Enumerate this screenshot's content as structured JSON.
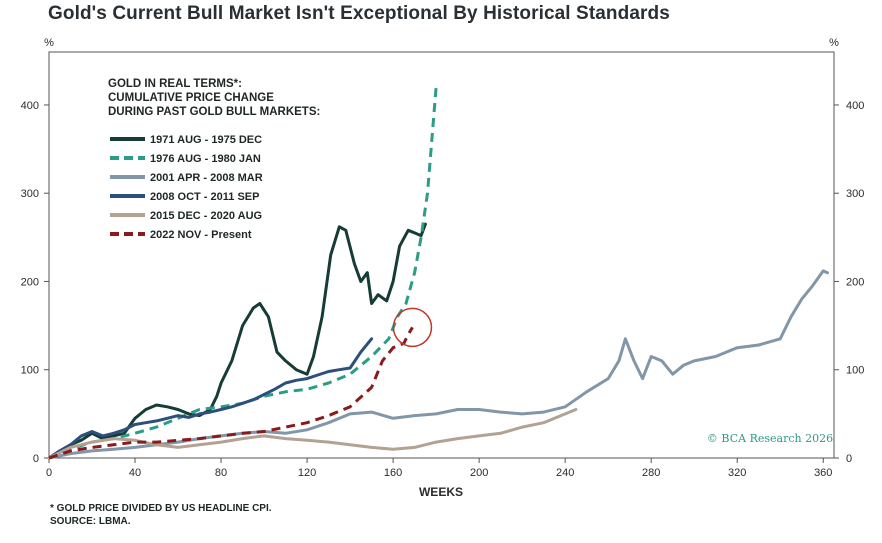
{
  "title": "Gold's Current Bull Market Isn't Exceptional By Historical Standards",
  "y_unit_left": "%",
  "y_unit_right": "%",
  "credit": "© BCA Research 2026",
  "footnote": "* GOLD PRICE DIVIDED BY US HEADLINE CPI.",
  "source": "SOURCE: LBMA.",
  "chart_data": {
    "type": "line",
    "title": "Gold's Current Bull Market Isn't Exceptional By Historical Standards",
    "xlabel": "WEEKS",
    "ylabel": "%",
    "xlim": [
      0,
      365
    ],
    "ylim": [
      0,
      460
    ],
    "x_ticks": [
      0,
      40,
      80,
      120,
      160,
      200,
      240,
      280,
      320,
      360
    ],
    "y_ticks": [
      0,
      100,
      200,
      300,
      400
    ],
    "legend_title": [
      "GOLD IN REAL TERMS*:",
      "CUMULATIVE PRICE CHANGE",
      "DURING PAST GOLD BULL MARKETS:"
    ],
    "legend_position": "top-left",
    "grid": false,
    "annotation": "red circle around latest value of current bull market",
    "series": [
      {
        "name": "1971 AUG - 1975 DEC",
        "color": "#163c36",
        "style": "solid",
        "points": [
          [
            0,
            0
          ],
          [
            5,
            8
          ],
          [
            10,
            15
          ],
          [
            15,
            20
          ],
          [
            20,
            28
          ],
          [
            25,
            22
          ],
          [
            30,
            25
          ],
          [
            35,
            28
          ],
          [
            40,
            45
          ],
          [
            45,
            55
          ],
          [
            50,
            60
          ],
          [
            55,
            58
          ],
          [
            60,
            55
          ],
          [
            65,
            50
          ],
          [
            70,
            48
          ],
          [
            75,
            55
          ],
          [
            78,
            70
          ],
          [
            80,
            85
          ],
          [
            85,
            110
          ],
          [
            90,
            150
          ],
          [
            95,
            170
          ],
          [
            98,
            175
          ],
          [
            102,
            160
          ],
          [
            106,
            120
          ],
          [
            110,
            110
          ],
          [
            115,
            100
          ],
          [
            120,
            95
          ],
          [
            123,
            115
          ],
          [
            127,
            160
          ],
          [
            131,
            230
          ],
          [
            135,
            262
          ],
          [
            138,
            258
          ],
          [
            142,
            220
          ],
          [
            145,
            200
          ],
          [
            148,
            210
          ],
          [
            150,
            175
          ],
          [
            153,
            185
          ],
          [
            157,
            178
          ],
          [
            160,
            200
          ],
          [
            163,
            240
          ],
          [
            167,
            258
          ],
          [
            170,
            255
          ],
          [
            173,
            252
          ],
          [
            175,
            265
          ]
        ]
      },
      {
        "name": "1976 AUG - 1980 JAN",
        "color": "#2a9d86",
        "style": "dashed",
        "points": [
          [
            0,
            0
          ],
          [
            10,
            10
          ],
          [
            20,
            18
          ],
          [
            30,
            22
          ],
          [
            40,
            28
          ],
          [
            50,
            35
          ],
          [
            60,
            45
          ],
          [
            70,
            55
          ],
          [
            80,
            58
          ],
          [
            90,
            62
          ],
          [
            100,
            70
          ],
          [
            110,
            75
          ],
          [
            120,
            78
          ],
          [
            130,
            85
          ],
          [
            140,
            95
          ],
          [
            150,
            115
          ],
          [
            158,
            135
          ],
          [
            162,
            160
          ],
          [
            166,
            175
          ],
          [
            170,
            210
          ],
          [
            173,
            250
          ],
          [
            176,
            300
          ],
          [
            178,
            360
          ],
          [
            180,
            420
          ]
        ]
      },
      {
        "name": "2001 APR - 2008 MAR",
        "color": "#8197a9",
        "style": "solid",
        "points": [
          [
            0,
            0
          ],
          [
            10,
            5
          ],
          [
            20,
            8
          ],
          [
            30,
            10
          ],
          [
            40,
            12
          ],
          [
            50,
            15
          ],
          [
            60,
            18
          ],
          [
            70,
            22
          ],
          [
            80,
            25
          ],
          [
            90,
            28
          ],
          [
            100,
            30
          ],
          [
            110,
            28
          ],
          [
            120,
            32
          ],
          [
            130,
            40
          ],
          [
            140,
            50
          ],
          [
            150,
            52
          ],
          [
            160,
            45
          ],
          [
            170,
            48
          ],
          [
            180,
            50
          ],
          [
            190,
            55
          ],
          [
            200,
            55
          ],
          [
            210,
            52
          ],
          [
            220,
            50
          ],
          [
            230,
            52
          ],
          [
            240,
            58
          ],
          [
            250,
            75
          ],
          [
            260,
            90
          ],
          [
            265,
            110
          ],
          [
            268,
            135
          ],
          [
            272,
            110
          ],
          [
            276,
            90
          ],
          [
            280,
            115
          ],
          [
            285,
            110
          ],
          [
            290,
            95
          ],
          [
            295,
            105
          ],
          [
            300,
            110
          ],
          [
            310,
            115
          ],
          [
            320,
            125
          ],
          [
            330,
            128
          ],
          [
            340,
            135
          ],
          [
            345,
            160
          ],
          [
            350,
            180
          ],
          [
            355,
            195
          ],
          [
            360,
            212
          ],
          [
            362,
            210
          ]
        ]
      },
      {
        "name": "2008 OCT - 2011 SEP",
        "color": "#2c4f7c",
        "style": "solid",
        "points": [
          [
            0,
            0
          ],
          [
            5,
            8
          ],
          [
            10,
            15
          ],
          [
            15,
            25
          ],
          [
            20,
            30
          ],
          [
            25,
            25
          ],
          [
            30,
            28
          ],
          [
            35,
            32
          ],
          [
            40,
            38
          ],
          [
            45,
            40
          ],
          [
            50,
            42
          ],
          [
            55,
            45
          ],
          [
            60,
            48
          ],
          [
            65,
            46
          ],
          [
            70,
            50
          ],
          [
            75,
            52
          ],
          [
            80,
            55
          ],
          [
            85,
            58
          ],
          [
            90,
            62
          ],
          [
            95,
            66
          ],
          [
            100,
            72
          ],
          [
            105,
            78
          ],
          [
            110,
            85
          ],
          [
            115,
            88
          ],
          [
            120,
            90
          ],
          [
            125,
            94
          ],
          [
            130,
            98
          ],
          [
            135,
            100
          ],
          [
            140,
            102
          ],
          [
            145,
            120
          ],
          [
            150,
            135
          ]
        ]
      },
      {
        "name": "2015 DEC - 2020 AUG",
        "color": "#b3a291",
        "style": "solid",
        "points": [
          [
            0,
            0
          ],
          [
            10,
            12
          ],
          [
            20,
            18
          ],
          [
            30,
            22
          ],
          [
            40,
            20
          ],
          [
            50,
            15
          ],
          [
            60,
            12
          ],
          [
            70,
            15
          ],
          [
            80,
            18
          ],
          [
            90,
            22
          ],
          [
            100,
            25
          ],
          [
            110,
            22
          ],
          [
            120,
            20
          ],
          [
            130,
            18
          ],
          [
            140,
            15
          ],
          [
            150,
            12
          ],
          [
            160,
            10
          ],
          [
            170,
            12
          ],
          [
            180,
            18
          ],
          [
            190,
            22
          ],
          [
            200,
            25
          ],
          [
            210,
            28
          ],
          [
            220,
            35
          ],
          [
            230,
            40
          ],
          [
            240,
            50
          ],
          [
            245,
            55
          ]
        ]
      },
      {
        "name": "2022 NOV - Present",
        "color": "#8b1a1a",
        "style": "dashed",
        "points": [
          [
            0,
            0
          ],
          [
            10,
            8
          ],
          [
            20,
            12
          ],
          [
            30,
            15
          ],
          [
            40,
            18
          ],
          [
            50,
            18
          ],
          [
            60,
            20
          ],
          [
            70,
            22
          ],
          [
            80,
            25
          ],
          [
            90,
            28
          ],
          [
            100,
            30
          ],
          [
            110,
            35
          ],
          [
            120,
            40
          ],
          [
            130,
            48
          ],
          [
            140,
            58
          ],
          [
            150,
            80
          ],
          [
            155,
            110
          ],
          [
            160,
            125
          ],
          [
            165,
            130
          ],
          [
            167,
            140
          ],
          [
            169,
            148
          ]
        ]
      }
    ]
  }
}
